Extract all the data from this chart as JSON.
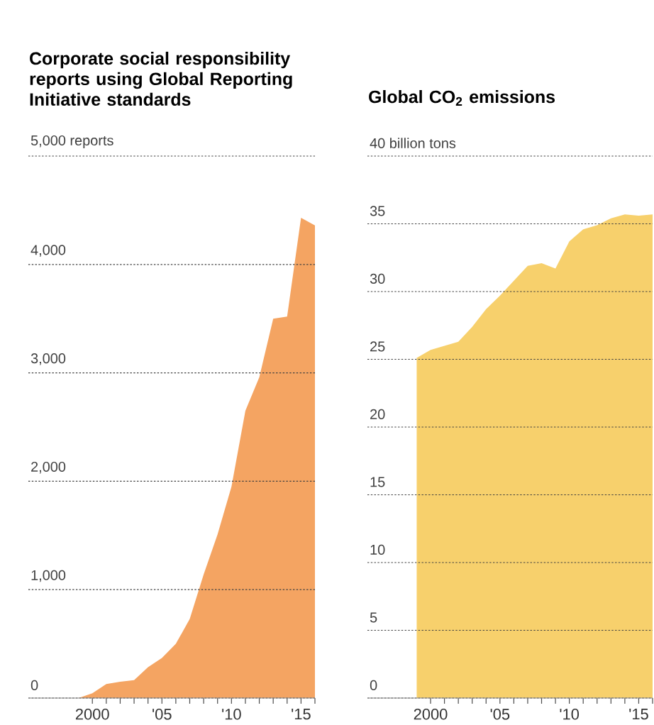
{
  "chart_data": [
    {
      "type": "area",
      "title": "Corporate social responsibility reports using Global Reporting Initiative standards",
      "color": "#f4a462",
      "grid": "y",
      "x": [
        1999,
        2000,
        2001,
        2002,
        2003,
        2004,
        2005,
        2006,
        2007,
        2008,
        2009,
        2010,
        2011,
        2012,
        2013,
        2014,
        2015,
        2016
      ],
      "values": [
        0,
        44,
        130,
        150,
        165,
        285,
        370,
        500,
        730,
        1140,
        1510,
        1950,
        2650,
        2960,
        3500,
        3520,
        4430,
        4360
      ],
      "xlim": [
        1995.4,
        2016
      ],
      "ylim": [
        0,
        5000
      ],
      "xticks": [
        {
          "value": 2000,
          "label": "2000"
        },
        {
          "value": 2001,
          "label": null
        },
        {
          "value": 2002,
          "label": null
        },
        {
          "value": 2003,
          "label": null
        },
        {
          "value": 2004,
          "label": null
        },
        {
          "value": 2005,
          "label": "'05"
        },
        {
          "value": 2006,
          "label": null
        },
        {
          "value": 2007,
          "label": null
        },
        {
          "value": 2008,
          "label": null
        },
        {
          "value": 2009,
          "label": null
        },
        {
          "value": 2010,
          "label": "'10"
        },
        {
          "value": 2011,
          "label": null
        },
        {
          "value": 2012,
          "label": null
        },
        {
          "value": 2013,
          "label": null
        },
        {
          "value": 2014,
          "label": null
        },
        {
          "value": 2015,
          "label": "'15"
        },
        {
          "value": 2016,
          "label": null
        }
      ],
      "yticks": [
        0,
        {
          "value": 1000,
          "label": "1,000"
        },
        {
          "value": 2000,
          "label": "2,000"
        },
        {
          "value": 3000,
          "label": "3,000"
        },
        {
          "value": 4000,
          "label": "4,000"
        },
        {
          "value": 5000,
          "label": "5,000 reports"
        }
      ]
    },
    {
      "type": "area",
      "title": "Global CO$_{2}$ emissions",
      "color": "#f7d06c",
      "grid": "y",
      "x": [
        1999,
        2000,
        2001,
        2002,
        2003,
        2004,
        2005,
        2006,
        2007,
        2008,
        2009,
        2010,
        2011,
        2012,
        2013,
        2014,
        2015,
        2016
      ],
      "values": [
        25.1,
        25.7,
        26.0,
        26.3,
        27.4,
        28.7,
        29.7,
        30.8,
        31.9,
        32.1,
        31.7,
        33.7,
        34.6,
        34.9,
        35.4,
        35.7,
        35.6,
        35.7
      ],
      "xlim": [
        1995.45,
        2016
      ],
      "ylim": [
        0,
        40
      ],
      "xticks": [
        {
          "value": 2000,
          "label": "2000"
        },
        {
          "value": 2001,
          "label": null
        },
        {
          "value": 2002,
          "label": null
        },
        {
          "value": 2003,
          "label": null
        },
        {
          "value": 2004,
          "label": null
        },
        {
          "value": 2005,
          "label": "'05"
        },
        {
          "value": 2006,
          "label": null
        },
        {
          "value": 2007,
          "label": null
        },
        {
          "value": 2008,
          "label": null
        },
        {
          "value": 2009,
          "label": null
        },
        {
          "value": 2010,
          "label": "'10"
        },
        {
          "value": 2011,
          "label": null
        },
        {
          "value": 2012,
          "label": null
        },
        {
          "value": 2013,
          "label": null
        },
        {
          "value": 2014,
          "label": null
        },
        {
          "value": 2015,
          "label": "'15"
        },
        {
          "value": 2016,
          "label": null
        }
      ],
      "yticks": [
        0,
        5,
        10,
        15,
        20,
        25,
        30,
        35,
        {
          "value": 40,
          "label": "40 billion tons"
        }
      ]
    }
  ]
}
